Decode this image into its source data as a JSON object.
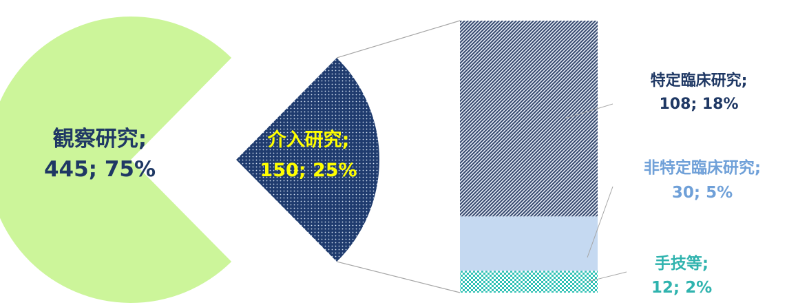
{
  "chart_data": {
    "type": "pie",
    "subtype": "bar-of-pie",
    "pie": [
      {
        "name": "観察研究",
        "value": 445,
        "percent": "75%",
        "color": "#ccf59a",
        "label_color": "#1f3864",
        "exploded": false
      },
      {
        "name": "介入研究",
        "value": 150,
        "percent": "25%",
        "color": "#1f3b6e",
        "label_color": "#ffff00",
        "exploded": true
      }
    ],
    "bar": [
      {
        "name": "特定臨床研究",
        "value": 108,
        "percent": "18%",
        "color": "#2b3f66",
        "label_color": "#1f3864",
        "pattern": "diagonal-stripe"
      },
      {
        "name": "非特定臨床研究",
        "value": 30,
        "percent": "5%",
        "color": "#c5d9f1",
        "label_color": "#6fa0d8",
        "pattern": "solid"
      },
      {
        "name": "手技等",
        "value": 12,
        "percent": "2%",
        "color": "#2fc1b5",
        "label_color": "#2fb3ae",
        "pattern": "checker"
      }
    ],
    "label_format": "{name};\n{value}; {percent}",
    "legend": "none"
  }
}
